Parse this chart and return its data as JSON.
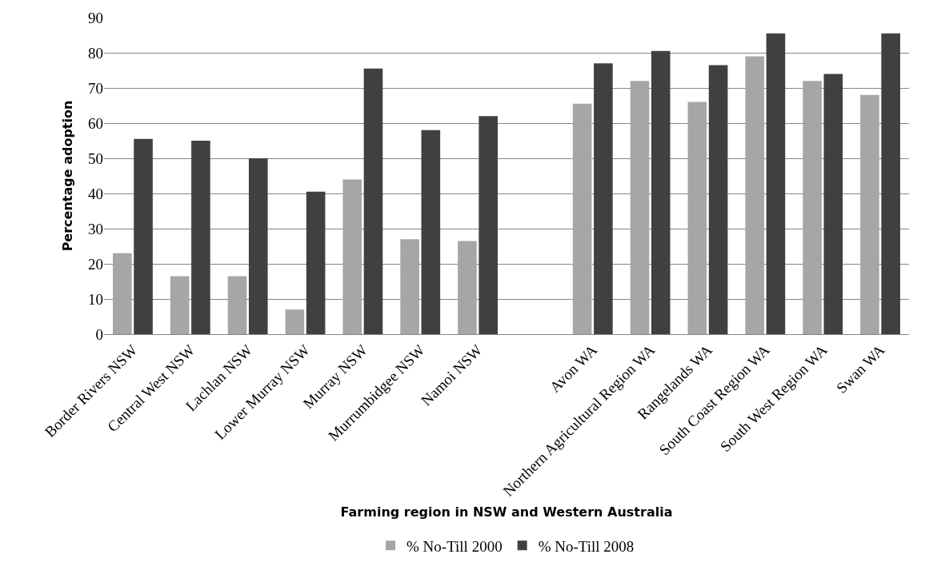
{
  "chart_data": {
    "type": "bar",
    "xlabel": "Farming region in NSW and Western Australia",
    "ylabel": "Percentage adoption",
    "categories": [
      "Border Rivers NSW",
      "Central West NSW",
      "Lachlan NSW",
      "Lower Murray NSW",
      "Murray NSW",
      "Murrumbidgee NSW",
      "Namoi NSW",
      null,
      "Avon WA",
      "Northern Agricultural Region WA",
      "Rangelands WA",
      "South Coast Region WA",
      "South West Region WA",
      "Swan WA"
    ],
    "series": [
      {
        "name": "% No-Till 2000",
        "color": "#a6a6a6",
        "values": [
          23,
          16.5,
          16.5,
          7,
          44,
          27,
          26.5,
          null,
          65.5,
          72,
          66,
          79,
          72,
          68
        ]
      },
      {
        "name": "% No-Till 2008",
        "color": "#404040",
        "values": [
          55.5,
          55,
          50,
          40.5,
          75.5,
          58,
          62,
          null,
          77,
          80.5,
          76.5,
          85.5,
          74,
          85.5
        ]
      }
    ],
    "ylim": [
      0,
      90
    ],
    "yticks": [
      0,
      10,
      20,
      30,
      40,
      50,
      60,
      70,
      80,
      90
    ],
    "grid": "y",
    "legend": "bottom"
  }
}
